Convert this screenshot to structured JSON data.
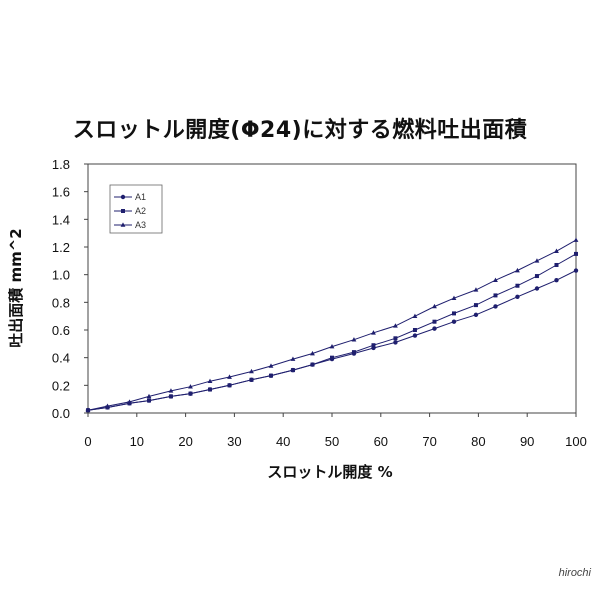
{
  "chart_data": {
    "type": "line",
    "title": "スロットル開度(Φ24)に対する燃料吐出面積",
    "xlabel": "スロットル開度 %",
    "ylabel": "吐出面積 mm^2",
    "xlim": [
      0,
      100
    ],
    "ylim": [
      0,
      1.8
    ],
    "xticks": [
      "0",
      "10",
      "20",
      "30",
      "40",
      "50",
      "60",
      "70",
      "80",
      "90",
      "100"
    ],
    "yticks": [
      "0.0",
      "0.2",
      "0.4",
      "0.6",
      "0.8",
      "1.0",
      "1.2",
      "1.4",
      "1.6",
      "1.8"
    ],
    "grid": false,
    "legend_position": "top-left",
    "series": [
      {
        "name": "A1",
        "marker": "circle",
        "color": "#1f1f6e",
        "x": [
          0,
          4,
          8.5,
          12.5,
          17,
          21,
          25,
          29,
          33.5,
          37.5,
          42,
          46,
          50,
          54.5,
          58.5,
          63,
          67,
          71,
          75,
          79.5,
          83.5,
          88,
          92,
          96,
          100
        ],
        "y": [
          0.02,
          0.04,
          0.07,
          0.09,
          0.12,
          0.14,
          0.17,
          0.2,
          0.24,
          0.27,
          0.31,
          0.35,
          0.39,
          0.43,
          0.47,
          0.51,
          0.56,
          0.61,
          0.66,
          0.71,
          0.77,
          0.84,
          0.9,
          0.96,
          1.03
        ]
      },
      {
        "name": "A2",
        "marker": "square",
        "color": "#1f1f6e",
        "x": [
          0,
          4,
          8.5,
          12.5,
          17,
          21,
          25,
          29,
          33.5,
          37.5,
          42,
          46,
          50,
          54.5,
          58.5,
          63,
          67,
          71,
          75,
          79.5,
          83.5,
          88,
          92,
          96,
          100
        ],
        "y": [
          0.02,
          0.04,
          0.07,
          0.09,
          0.12,
          0.14,
          0.17,
          0.2,
          0.24,
          0.27,
          0.31,
          0.35,
          0.4,
          0.44,
          0.49,
          0.54,
          0.6,
          0.66,
          0.72,
          0.78,
          0.85,
          0.92,
          0.99,
          1.07,
          1.15
        ]
      },
      {
        "name": "A3",
        "marker": "triangle",
        "color": "#1f1f6e",
        "x": [
          0,
          4,
          8.5,
          12.5,
          17,
          21,
          25,
          29,
          33.5,
          37.5,
          42,
          46,
          50,
          54.5,
          58.5,
          63,
          67,
          71,
          75,
          79.5,
          83.5,
          88,
          92,
          96,
          100
        ],
        "y": [
          0.02,
          0.05,
          0.08,
          0.12,
          0.16,
          0.19,
          0.23,
          0.26,
          0.3,
          0.34,
          0.39,
          0.43,
          0.48,
          0.53,
          0.58,
          0.63,
          0.7,
          0.77,
          0.83,
          0.89,
          0.96,
          1.03,
          1.1,
          1.17,
          1.25
        ]
      }
    ]
  },
  "watermark": "hirochi"
}
